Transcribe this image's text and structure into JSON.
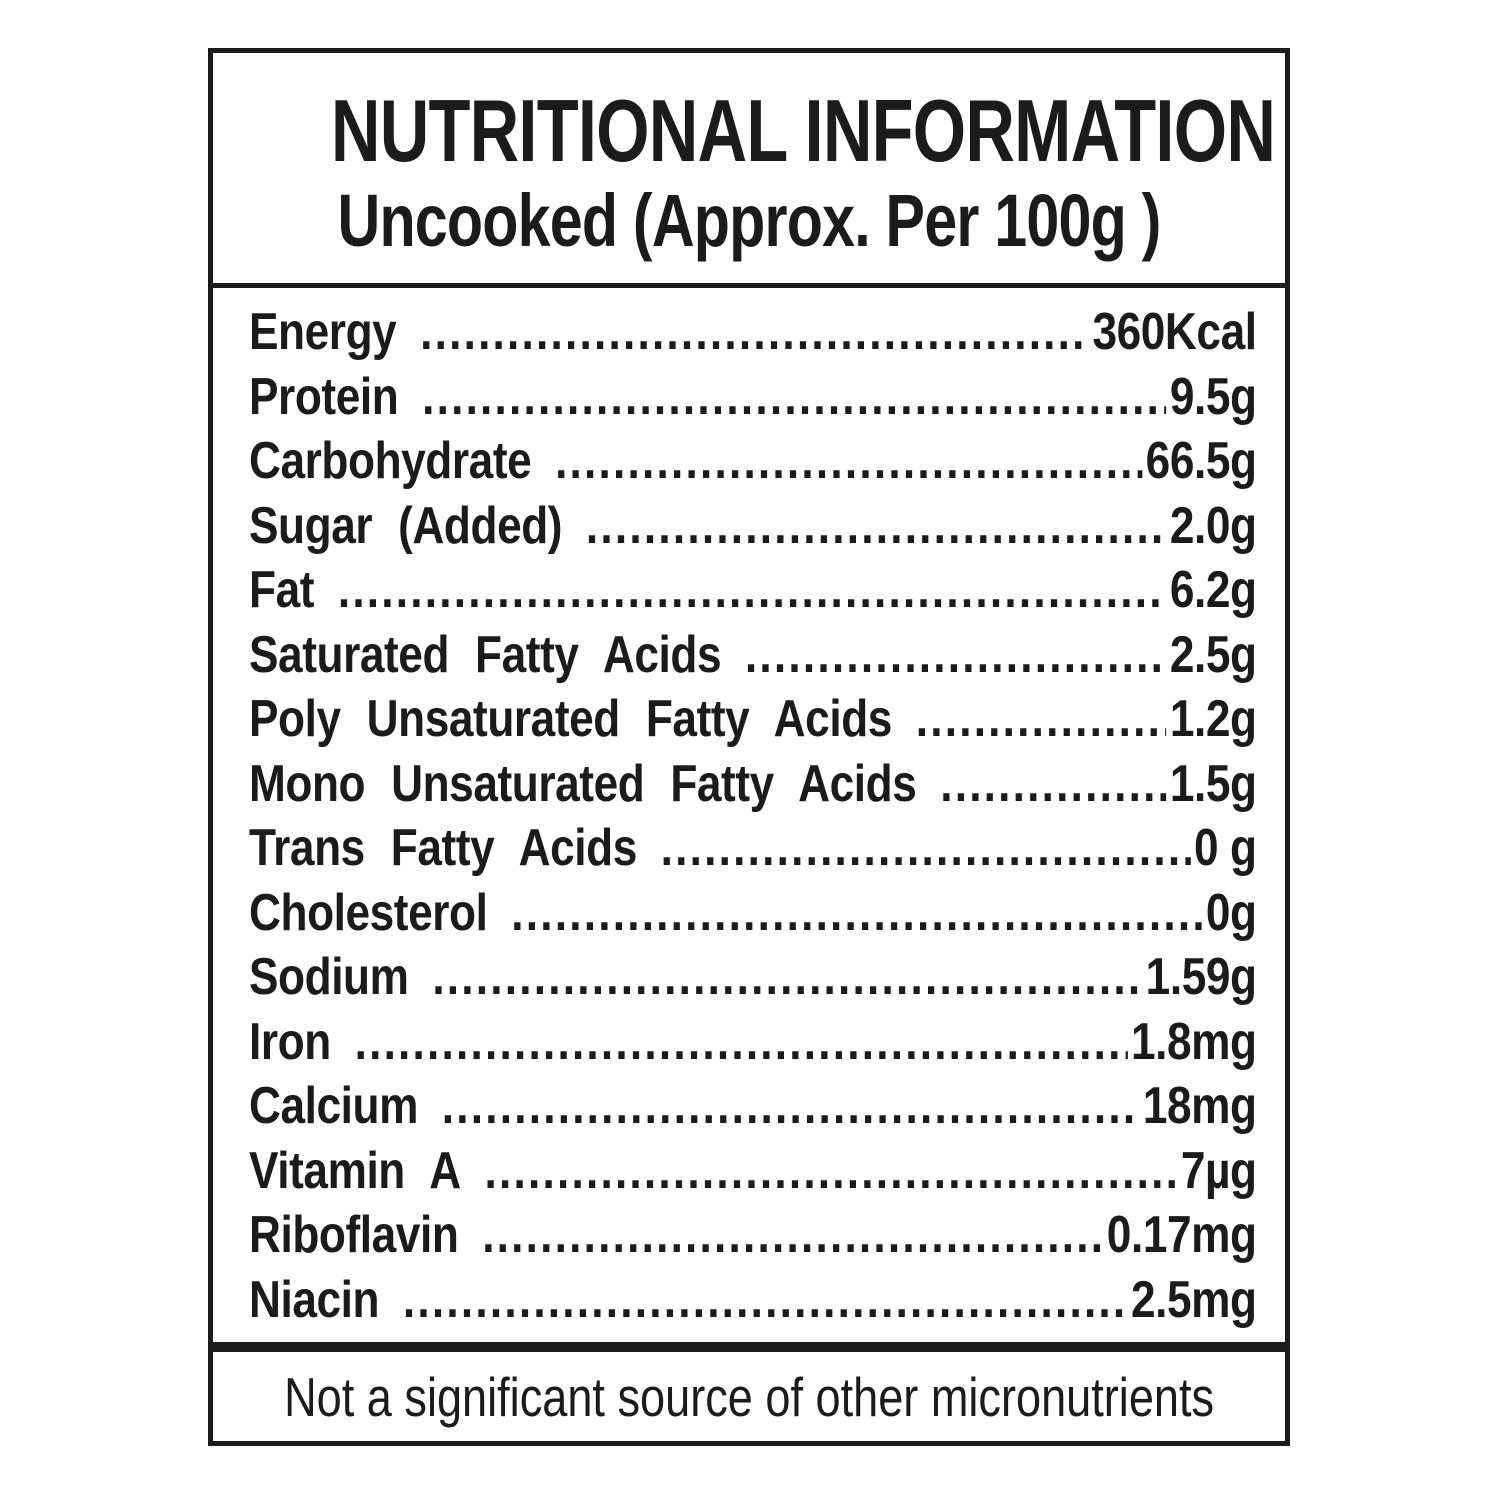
{
  "label": {
    "title": "NUTRITIONAL INFORMATION",
    "subtitle": "Uncooked (Approx. Per 100g )",
    "rows": [
      {
        "name": "Energy",
        "value": "360Kcal"
      },
      {
        "name": "Protein",
        "value": "9.5g"
      },
      {
        "name": "Carbohydrate",
        "value": "66.5g"
      },
      {
        "name": "Sugar (Added)",
        "value": "2.0g"
      },
      {
        "name": "Fat",
        "value": "6.2g"
      },
      {
        "name": "Saturated Fatty Acids",
        "value": "2.5g"
      },
      {
        "name": "Poly Unsaturated Fatty Acids",
        "value": "1.2g"
      },
      {
        "name": "Mono Unsaturated Fatty Acids",
        "value": "1.5g"
      },
      {
        "name": "Trans Fatty Acids",
        "value": "0 g"
      },
      {
        "name": "Cholesterol",
        "value": "0g"
      },
      {
        "name": "Sodium",
        "value": "1.59g"
      },
      {
        "name": "Iron",
        "value": "1.8mg"
      },
      {
        "name": "Calcium",
        "value": "18mg"
      },
      {
        "name": "Vitamin A",
        "value": "7µg"
      },
      {
        "name": "Riboflavin",
        "value": "0.17mg"
      },
      {
        "name": "Niacin",
        "value": "2.5mg"
      }
    ],
    "footnote": "Not a significant source of other micronutrients"
  },
  "colors": {
    "ink": "#1b1b1b",
    "background": "#ffffff"
  }
}
